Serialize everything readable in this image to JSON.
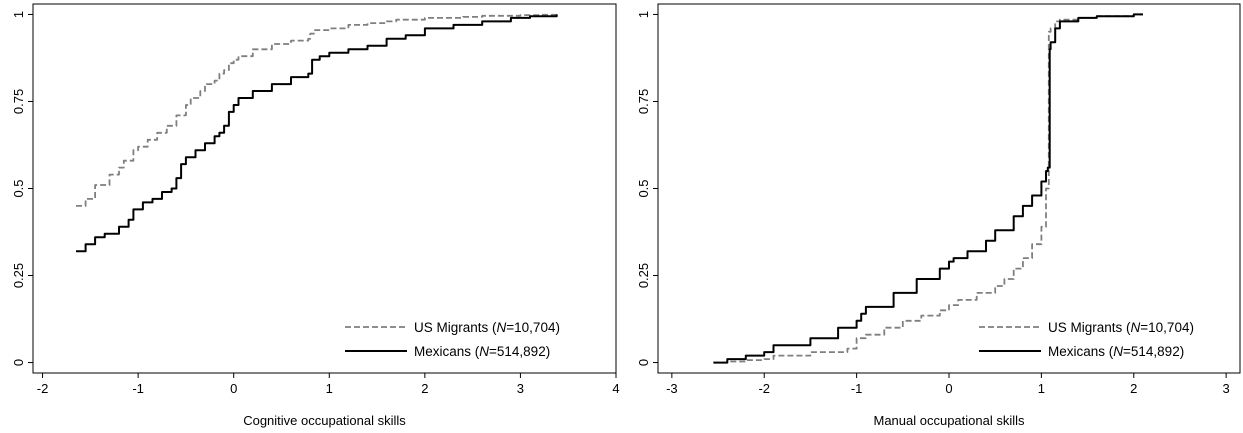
{
  "chart_data": [
    {
      "type": "line",
      "xlabel": "Cognitive occupational skills",
      "ylabel": "",
      "xlim": [
        -2.1,
        4.0
      ],
      "ylim": [
        0,
        1.0
      ],
      "xticks": [
        "-2",
        "-1",
        "0",
        "1",
        "2",
        "3",
        "4"
      ],
      "yticks": [
        "0",
        "0.25",
        "0.5",
        "0.75",
        "1"
      ],
      "grid": false,
      "legend": "bottom-right",
      "series": [
        {
          "legend_prefix": "US Migrants (",
          "legend_n": "N",
          "legend_suffix": "=10,704)",
          "style": "dashed",
          "color": "#7f7f7f",
          "x": [
            -1.65,
            -1.55,
            -1.45,
            -1.3,
            -1.2,
            -1.15,
            -1.05,
            -1.0,
            -0.9,
            -0.8,
            -0.7,
            -0.6,
            -0.5,
            -0.45,
            -0.35,
            -0.3,
            -0.2,
            -0.15,
            -0.1,
            -0.05,
            0.0,
            0.05,
            0.2,
            0.4,
            0.6,
            0.78,
            0.8,
            0.85,
            1.0,
            1.2,
            1.4,
            1.6,
            1.7,
            2.0,
            2.4,
            2.6,
            3.0,
            3.2,
            3.38
          ],
          "y": [
            0.45,
            0.47,
            0.51,
            0.54,
            0.56,
            0.58,
            0.61,
            0.62,
            0.64,
            0.66,
            0.68,
            0.71,
            0.74,
            0.76,
            0.78,
            0.8,
            0.81,
            0.83,
            0.84,
            0.86,
            0.87,
            0.88,
            0.9,
            0.915,
            0.925,
            0.93,
            0.945,
            0.955,
            0.96,
            0.97,
            0.975,
            0.98,
            0.985,
            0.99,
            0.993,
            0.996,
            0.998,
            0.999,
            1.0
          ]
        },
        {
          "legend_prefix": "Mexicans (",
          "legend_n": "N",
          "legend_suffix": "=514,892)",
          "style": "solid",
          "color": "#000000",
          "x": [
            -1.65,
            -1.55,
            -1.45,
            -1.35,
            -1.2,
            -1.1,
            -1.05,
            -0.95,
            -0.85,
            -0.75,
            -0.65,
            -0.6,
            -0.55,
            -0.5,
            -0.4,
            -0.3,
            -0.2,
            -0.15,
            -0.1,
            -0.05,
            0.0,
            0.05,
            0.2,
            0.4,
            0.6,
            0.78,
            0.82,
            0.9,
            1.0,
            1.2,
            1.4,
            1.6,
            1.8,
            2.0,
            2.3,
            2.6,
            2.9,
            3.1,
            3.38
          ],
          "y": [
            0.32,
            0.34,
            0.36,
            0.37,
            0.39,
            0.41,
            0.44,
            0.46,
            0.47,
            0.49,
            0.5,
            0.53,
            0.57,
            0.59,
            0.61,
            0.63,
            0.65,
            0.66,
            0.68,
            0.72,
            0.74,
            0.76,
            0.78,
            0.8,
            0.82,
            0.83,
            0.87,
            0.88,
            0.89,
            0.9,
            0.91,
            0.93,
            0.94,
            0.96,
            0.97,
            0.98,
            0.99,
            0.995,
            1.0
          ]
        }
      ]
    },
    {
      "type": "line",
      "xlabel": "Manual occupational skills",
      "ylabel": "",
      "xlim": [
        -3.15,
        3.15
      ],
      "ylim": [
        0,
        1.0
      ],
      "xticks": [
        "-3",
        "-2",
        "-1",
        "0",
        "1",
        "2",
        "3"
      ],
      "yticks": [
        "0",
        "0.25",
        "0.5",
        "0.75",
        "1"
      ],
      "grid": false,
      "legend": "bottom-right",
      "series": [
        {
          "legend_prefix": "US Migrants (",
          "legend_n": "N",
          "legend_suffix": "=10,704)",
          "style": "dashed",
          "color": "#7f7f7f",
          "x": [
            -2.55,
            -2.4,
            -2.2,
            -2.0,
            -1.9,
            -1.5,
            -1.1,
            -1.0,
            -0.9,
            -0.7,
            -0.5,
            -0.3,
            -0.1,
            0.0,
            0.1,
            0.3,
            0.5,
            0.6,
            0.7,
            0.8,
            0.9,
            1.0,
            1.05,
            1.08,
            1.1,
            1.15,
            1.2,
            1.4,
            1.6,
            2.0,
            2.1
          ],
          "y": [
            0.0,
            0.003,
            0.007,
            0.01,
            0.02,
            0.03,
            0.04,
            0.07,
            0.08,
            0.1,
            0.12,
            0.135,
            0.15,
            0.165,
            0.18,
            0.2,
            0.22,
            0.24,
            0.27,
            0.3,
            0.34,
            0.39,
            0.5,
            0.95,
            0.96,
            0.98,
            0.985,
            0.99,
            0.995,
            1.0,
            1.0
          ]
        },
        {
          "legend_prefix": "Mexicans (",
          "legend_n": "N",
          "legend_suffix": "=514,892)",
          "style": "solid",
          "color": "#000000",
          "x": [
            -2.55,
            -2.4,
            -2.2,
            -2.0,
            -1.9,
            -1.5,
            -1.2,
            -1.0,
            -0.95,
            -0.9,
            -0.6,
            -0.35,
            -0.1,
            0.0,
            0.05,
            0.2,
            0.4,
            0.5,
            0.7,
            0.8,
            0.9,
            1.0,
            1.05,
            1.07,
            1.09,
            1.1,
            1.15,
            1.2,
            1.4,
            1.6,
            2.0,
            2.1
          ],
          "y": [
            0.0,
            0.01,
            0.02,
            0.03,
            0.05,
            0.07,
            0.1,
            0.12,
            0.14,
            0.16,
            0.2,
            0.24,
            0.27,
            0.29,
            0.3,
            0.32,
            0.35,
            0.38,
            0.42,
            0.45,
            0.48,
            0.52,
            0.55,
            0.56,
            0.9,
            0.92,
            0.96,
            0.98,
            0.99,
            0.995,
            1.0,
            1.0
          ]
        }
      ]
    }
  ]
}
